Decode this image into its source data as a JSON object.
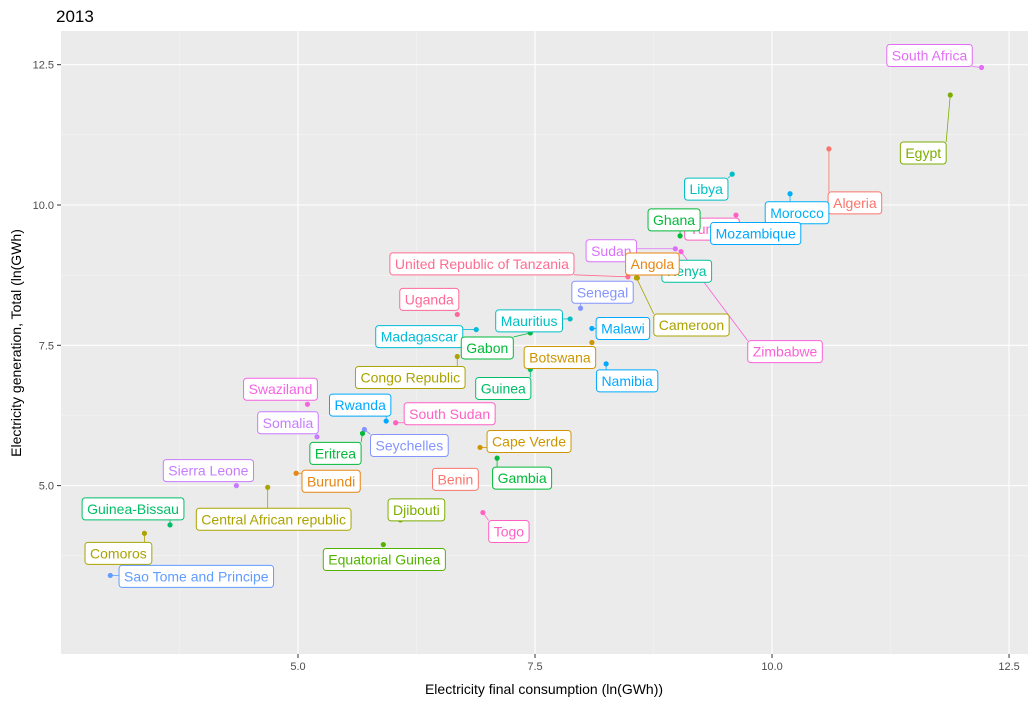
{
  "chart_data": {
    "type": "scatter",
    "title": "2013",
    "xlabel": "Electricity final consumption (ln(GWh))",
    "ylabel": "Electricity generation, Total (ln(GWh)",
    "xlim": [
      2.5,
      12.7
    ],
    "ylim": [
      2.0,
      13.1
    ],
    "x_ticks": [
      5.0,
      7.5,
      10.0,
      12.5
    ],
    "y_ticks": [
      5.0,
      7.5,
      10.0,
      12.5
    ],
    "x_tick_labels": [
      "5.0",
      "7.5",
      "10.0",
      "12.5"
    ],
    "y_tick_labels": [
      "5.0",
      "7.5",
      "10.0",
      "12.5"
    ],
    "grid": true,
    "legend": "none",
    "points": [
      {
        "name": "South Africa",
        "x": 12.21,
        "y": 12.45,
        "color": "#E36EF6"
      },
      {
        "name": "Egypt",
        "x": 11.88,
        "y": 11.96,
        "color": "#7CAE00"
      },
      {
        "name": "Algeria",
        "x": 10.6,
        "y": 11.0,
        "color": "#F8766D"
      },
      {
        "name": "Libya",
        "x": 9.58,
        "y": 10.55,
        "color": "#00BFC4"
      },
      {
        "name": "Morocco",
        "x": 10.19,
        "y": 10.2,
        "color": "#00B0F6"
      },
      {
        "name": "Tunisia",
        "x": 9.62,
        "y": 9.82,
        "color": "#FF61C3"
      },
      {
        "name": "Mozambique",
        "x": 9.29,
        "y": 9.6,
        "color": "#00A9FF"
      },
      {
        "name": "Ghana",
        "x": 9.03,
        "y": 9.45,
        "color": "#00BA38"
      },
      {
        "name": "Sudan",
        "x": 8.98,
        "y": 9.22,
        "color": "#DB72FB"
      },
      {
        "name": "Zimbabwe",
        "x": 9.04,
        "y": 9.17,
        "color": "#FB61D7"
      },
      {
        "name": "Kenya",
        "x": 8.9,
        "y": 9.07,
        "color": "#00C19F"
      },
      {
        "name": "United Republic of Tanzania",
        "x": 8.48,
        "y": 8.72,
        "color": "#FF6C91"
      },
      {
        "name": "Angola",
        "x": 8.58,
        "y": 8.7,
        "color": "#E68613"
      },
      {
        "name": "Cameroon",
        "x": 8.57,
        "y": 8.7,
        "color": "#ABA300"
      },
      {
        "name": "Senegal",
        "x": 7.98,
        "y": 8.16,
        "color": "#8494FF"
      },
      {
        "name": "Uganda",
        "x": 6.68,
        "y": 8.05,
        "color": "#FF6A98"
      },
      {
        "name": "Mauritius",
        "x": 7.87,
        "y": 7.97,
        "color": "#00BFC4"
      },
      {
        "name": "Malawi",
        "x": 8.1,
        "y": 7.8,
        "color": "#00A9FF"
      },
      {
        "name": "Madagascar",
        "x": 6.88,
        "y": 7.78,
        "color": "#00BCD8"
      },
      {
        "name": "Gabon",
        "x": 7.45,
        "y": 7.72,
        "color": "#00BA38"
      },
      {
        "name": "Botswana",
        "x": 8.1,
        "y": 7.55,
        "color": "#CD9600"
      },
      {
        "name": "Congo Republic",
        "x": 6.68,
        "y": 7.3,
        "color": "#ABA300"
      },
      {
        "name": "Guinea",
        "x": 7.45,
        "y": 7.07,
        "color": "#00BE67"
      },
      {
        "name": "Namibia",
        "x": 8.25,
        "y": 7.17,
        "color": "#00A9FF"
      },
      {
        "name": "Swaziland",
        "x": 5.1,
        "y": 6.45,
        "color": "#F564E3"
      },
      {
        "name": "Rwanda",
        "x": 5.93,
        "y": 6.15,
        "color": "#00A9FF"
      },
      {
        "name": "South Sudan",
        "x": 6.03,
        "y": 6.12,
        "color": "#FF61C3"
      },
      {
        "name": "Somalia",
        "x": 5.2,
        "y": 5.87,
        "color": "#C77CFF"
      },
      {
        "name": "Seychelles",
        "x": 5.7,
        "y": 6.0,
        "color": "#8494FF"
      },
      {
        "name": "Eritrea",
        "x": 5.68,
        "y": 5.93,
        "color": "#00BA38"
      },
      {
        "name": "Cape Verde",
        "x": 6.92,
        "y": 5.68,
        "color": "#CD9600"
      },
      {
        "name": "Gambia",
        "x": 7.1,
        "y": 5.49,
        "color": "#00BA38"
      },
      {
        "name": "Sierra Leone",
        "x": 4.35,
        "y": 5.0,
        "color": "#C77CFF"
      },
      {
        "name": "Burundi",
        "x": 4.98,
        "y": 5.22,
        "color": "#E68613"
      },
      {
        "name": "Central African republic",
        "x": 4.68,
        "y": 4.97,
        "color": "#ABA300"
      },
      {
        "name": "Benin",
        "x": 6.85,
        "y": 5.13,
        "color": "#F8766D"
      },
      {
        "name": "Guinea-Bissau",
        "x": 3.65,
        "y": 4.3,
        "color": "#00BE67"
      },
      {
        "name": "Djibouti",
        "x": 6.08,
        "y": 4.39,
        "color": "#7CAE00"
      },
      {
        "name": "Togo",
        "x": 6.95,
        "y": 4.52,
        "color": "#FF61C3"
      },
      {
        "name": "Comoros",
        "x": 3.38,
        "y": 4.15,
        "color": "#ABA300"
      },
      {
        "name": "Equatorial Guinea",
        "x": 5.9,
        "y": 3.95,
        "color": "#53B400"
      },
      {
        "name": "Sao Tome and Principe",
        "x": 3.02,
        "y": 3.4,
        "color": "#619CFF"
      }
    ]
  }
}
